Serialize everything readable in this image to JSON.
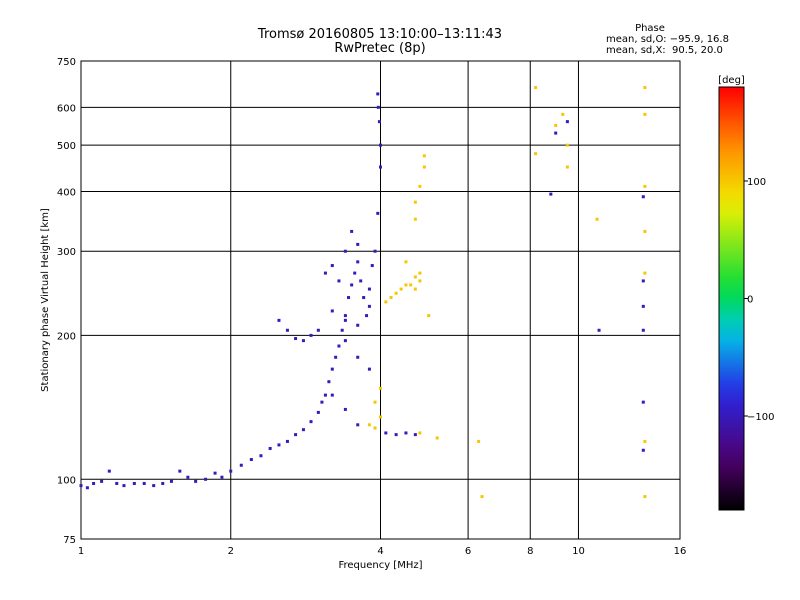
{
  "header": {
    "title": "Tromsø 20160805 13:10:00–13:11:43",
    "subtitle": "RwPretec (8p)",
    "phase_title": "Phase",
    "phase_line1": "mean, sd,O: −95.9, 16.8",
    "phase_line2": "mean, sd,X:  90.5, 20.0"
  },
  "chart_data": {
    "type": "scatter",
    "title": "Tromsø 20160805 13:10:00–13:11:43",
    "subtitle": "RwPretec (8p)",
    "xlabel": "Frequency [MHz]",
    "ylabel": "Stationary phase Virtual Height [km]",
    "xscale": "log",
    "yscale": "log",
    "xlim": [
      1,
      16
    ],
    "ylim": [
      75,
      750
    ],
    "xticks": [
      1,
      2,
      4,
      6,
      8,
      10,
      16
    ],
    "yticks": [
      75,
      100,
      200,
      300,
      400,
      500,
      600,
      750
    ],
    "grid": true,
    "colorbar": {
      "label": "[deg]",
      "range": [
        -180,
        180
      ],
      "ticks": [
        100,
        0,
        -100
      ],
      "colormap": "rainbow (black-purple-blue-cyan-green-yellow-red)"
    },
    "series": [
      {
        "name": "O",
        "color_phase": -100,
        "points": [
          [
            1.0,
            97
          ],
          [
            1.03,
            96
          ],
          [
            1.06,
            98
          ],
          [
            1.1,
            99
          ],
          [
            1.14,
            104
          ],
          [
            1.18,
            98
          ],
          [
            1.22,
            97
          ],
          [
            1.28,
            98
          ],
          [
            1.34,
            98
          ],
          [
            1.4,
            97
          ],
          [
            1.46,
            98
          ],
          [
            1.52,
            99
          ],
          [
            1.58,
            104
          ],
          [
            1.64,
            101
          ],
          [
            1.7,
            99
          ],
          [
            1.78,
            100
          ],
          [
            1.86,
            103
          ],
          [
            1.92,
            101
          ],
          [
            2.0,
            104
          ],
          [
            2.1,
            107
          ],
          [
            2.2,
            110
          ],
          [
            2.3,
            112
          ],
          [
            2.4,
            116
          ],
          [
            2.5,
            118
          ],
          [
            2.6,
            120
          ],
          [
            2.7,
            124
          ],
          [
            2.8,
            127
          ],
          [
            2.9,
            132
          ],
          [
            3.0,
            138
          ],
          [
            3.05,
            145
          ],
          [
            3.1,
            150
          ],
          [
            3.15,
            160
          ],
          [
            3.2,
            170
          ],
          [
            3.25,
            180
          ],
          [
            3.3,
            190
          ],
          [
            3.35,
            205
          ],
          [
            3.4,
            220
          ],
          [
            3.45,
            240
          ],
          [
            3.5,
            255
          ],
          [
            3.55,
            270
          ],
          [
            3.6,
            285
          ],
          [
            3.65,
            260
          ],
          [
            3.7,
            240
          ],
          [
            3.75,
            220
          ],
          [
            3.8,
            250
          ],
          [
            3.85,
            280
          ],
          [
            3.9,
            300
          ],
          [
            3.95,
            360
          ],
          [
            4.0,
            450
          ],
          [
            4.0,
            500
          ],
          [
            3.98,
            560
          ],
          [
            3.96,
            600
          ],
          [
            3.95,
            640
          ],
          [
            2.5,
            215
          ],
          [
            2.6,
            205
          ],
          [
            2.7,
            197
          ],
          [
            2.8,
            195
          ],
          [
            2.9,
            200
          ],
          [
            3.0,
            205
          ],
          [
            3.2,
            225
          ],
          [
            3.4,
            215
          ],
          [
            3.6,
            210
          ],
          [
            3.8,
            230
          ],
          [
            3.4,
            300
          ],
          [
            3.5,
            330
          ],
          [
            3.6,
            310
          ],
          [
            3.3,
            260
          ],
          [
            3.2,
            280
          ],
          [
            3.1,
            270
          ],
          [
            4.1,
            125
          ],
          [
            4.3,
            124
          ],
          [
            4.5,
            125
          ],
          [
            4.7,
            124
          ],
          [
            3.4,
            195
          ],
          [
            3.6,
            180
          ],
          [
            3.8,
            170
          ],
          [
            3.2,
            150
          ],
          [
            3.4,
            140
          ],
          [
            3.6,
            130
          ],
          [
            9.0,
            530
          ],
          [
            9.5,
            560
          ],
          [
            13.5,
            390
          ],
          [
            13.5,
            260
          ],
          [
            13.5,
            230
          ],
          [
            13.5,
            205
          ],
          [
            13.5,
            145
          ],
          [
            13.5,
            115
          ],
          [
            11.0,
            205
          ],
          [
            8.8,
            395
          ]
        ]
      },
      {
        "name": "X",
        "color_phase": 100,
        "points": [
          [
            4.1,
            235
          ],
          [
            4.2,
            240
          ],
          [
            4.3,
            245
          ],
          [
            4.4,
            250
          ],
          [
            4.5,
            255
          ],
          [
            4.6,
            255
          ],
          [
            4.7,
            250
          ],
          [
            4.8,
            260
          ],
          [
            4.8,
            270
          ],
          [
            4.7,
            265
          ],
          [
            4.5,
            285
          ],
          [
            4.7,
            350
          ],
          [
            4.8,
            410
          ],
          [
            4.9,
            450
          ],
          [
            4.9,
            475
          ],
          [
            4.7,
            380
          ],
          [
            4.0,
            135
          ],
          [
            3.9,
            145
          ],
          [
            4.0,
            155
          ],
          [
            3.8,
            130
          ],
          [
            3.9,
            128
          ],
          [
            4.8,
            125
          ],
          [
            5.2,
            122
          ],
          [
            8.2,
            660
          ],
          [
            9.0,
            550
          ],
          [
            9.3,
            580
          ],
          [
            9.5,
            500
          ],
          [
            13.6,
            660
          ],
          [
            13.6,
            580
          ],
          [
            13.6,
            410
          ],
          [
            13.6,
            330
          ],
          [
            13.6,
            270
          ],
          [
            13.6,
            120
          ],
          [
            13.6,
            92
          ],
          [
            8.2,
            480
          ],
          [
            9.5,
            450
          ],
          [
            10.9,
            350
          ],
          [
            5.0,
            220
          ],
          [
            6.3,
            120
          ],
          [
            6.4,
            92
          ]
        ]
      }
    ]
  }
}
